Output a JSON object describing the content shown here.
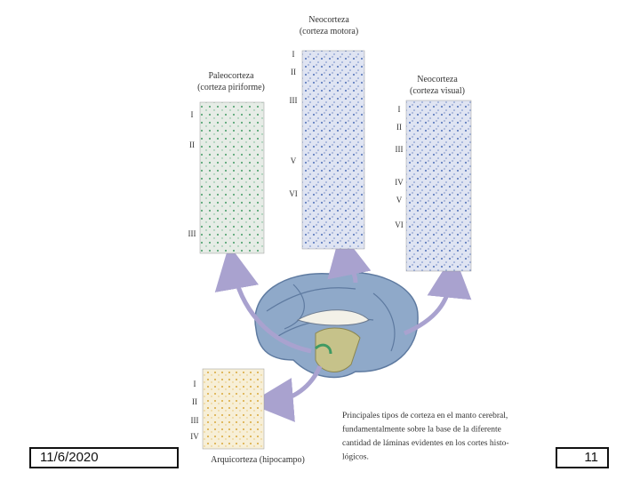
{
  "panels": [
    {
      "title": "Paleocorteza",
      "subtitle": "(corteza piriforme)",
      "layers": [
        "I",
        "II",
        "III"
      ]
    },
    {
      "title": "Neocorteza",
      "subtitle": "(corteza motora)",
      "layers": [
        "I",
        "II",
        "III",
        "V",
        "VI"
      ]
    },
    {
      "title": "Neocorteza",
      "subtitle": "(corteza visual)",
      "layers": [
        "I",
        "II",
        "III",
        "IV",
        "V",
        "VI"
      ]
    },
    {
      "title": "Arquicorteza (hipocampo)",
      "layers": [
        "I",
        "II",
        "III",
        "IV"
      ]
    }
  ],
  "caption": [
    "Principales tipos de corteza en el manto cerebral,",
    "fundamentalmente sobre la base de la diferente",
    "cantidad de láminas evidentes en los cortes histo-",
    "lógicos."
  ],
  "footer": {
    "date": "11/6/2020",
    "page": "11"
  }
}
